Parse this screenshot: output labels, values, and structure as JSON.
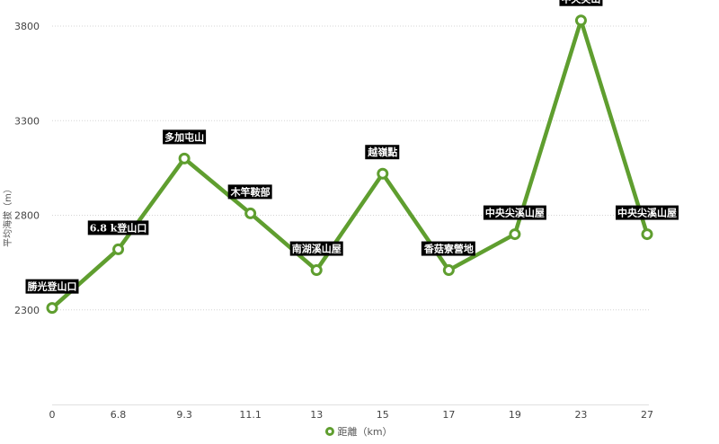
{
  "chart_data": {
    "type": "line",
    "title": "",
    "xlabel": "",
    "ylabel": "平均海拔（m）",
    "ylim": [
      1800,
      3900
    ],
    "yticks": [
      2300,
      2800,
      3300,
      3800
    ],
    "categories": [
      "0",
      "6.8",
      "9.3",
      "11.1",
      "13",
      "15",
      "17",
      "19",
      "23",
      "27"
    ],
    "series": [
      {
        "name": "距離（km）",
        "color": "#5f9e2f",
        "values": [
          2310,
          2620,
          3100,
          2810,
          2510,
          3020,
          2510,
          2700,
          3830,
          2700
        ],
        "point_labels": [
          "勝光登山口",
          "6.8 k登山口",
          "多加屯山",
          "木竿鞍部",
          "南湖溪山屋",
          "越嶺點",
          "香菇寮營地",
          "中央尖溪山屋",
          "中央尖山",
          "中央尖溪山屋"
        ]
      }
    ],
    "grid": true,
    "legend": "bottom-center"
  }
}
